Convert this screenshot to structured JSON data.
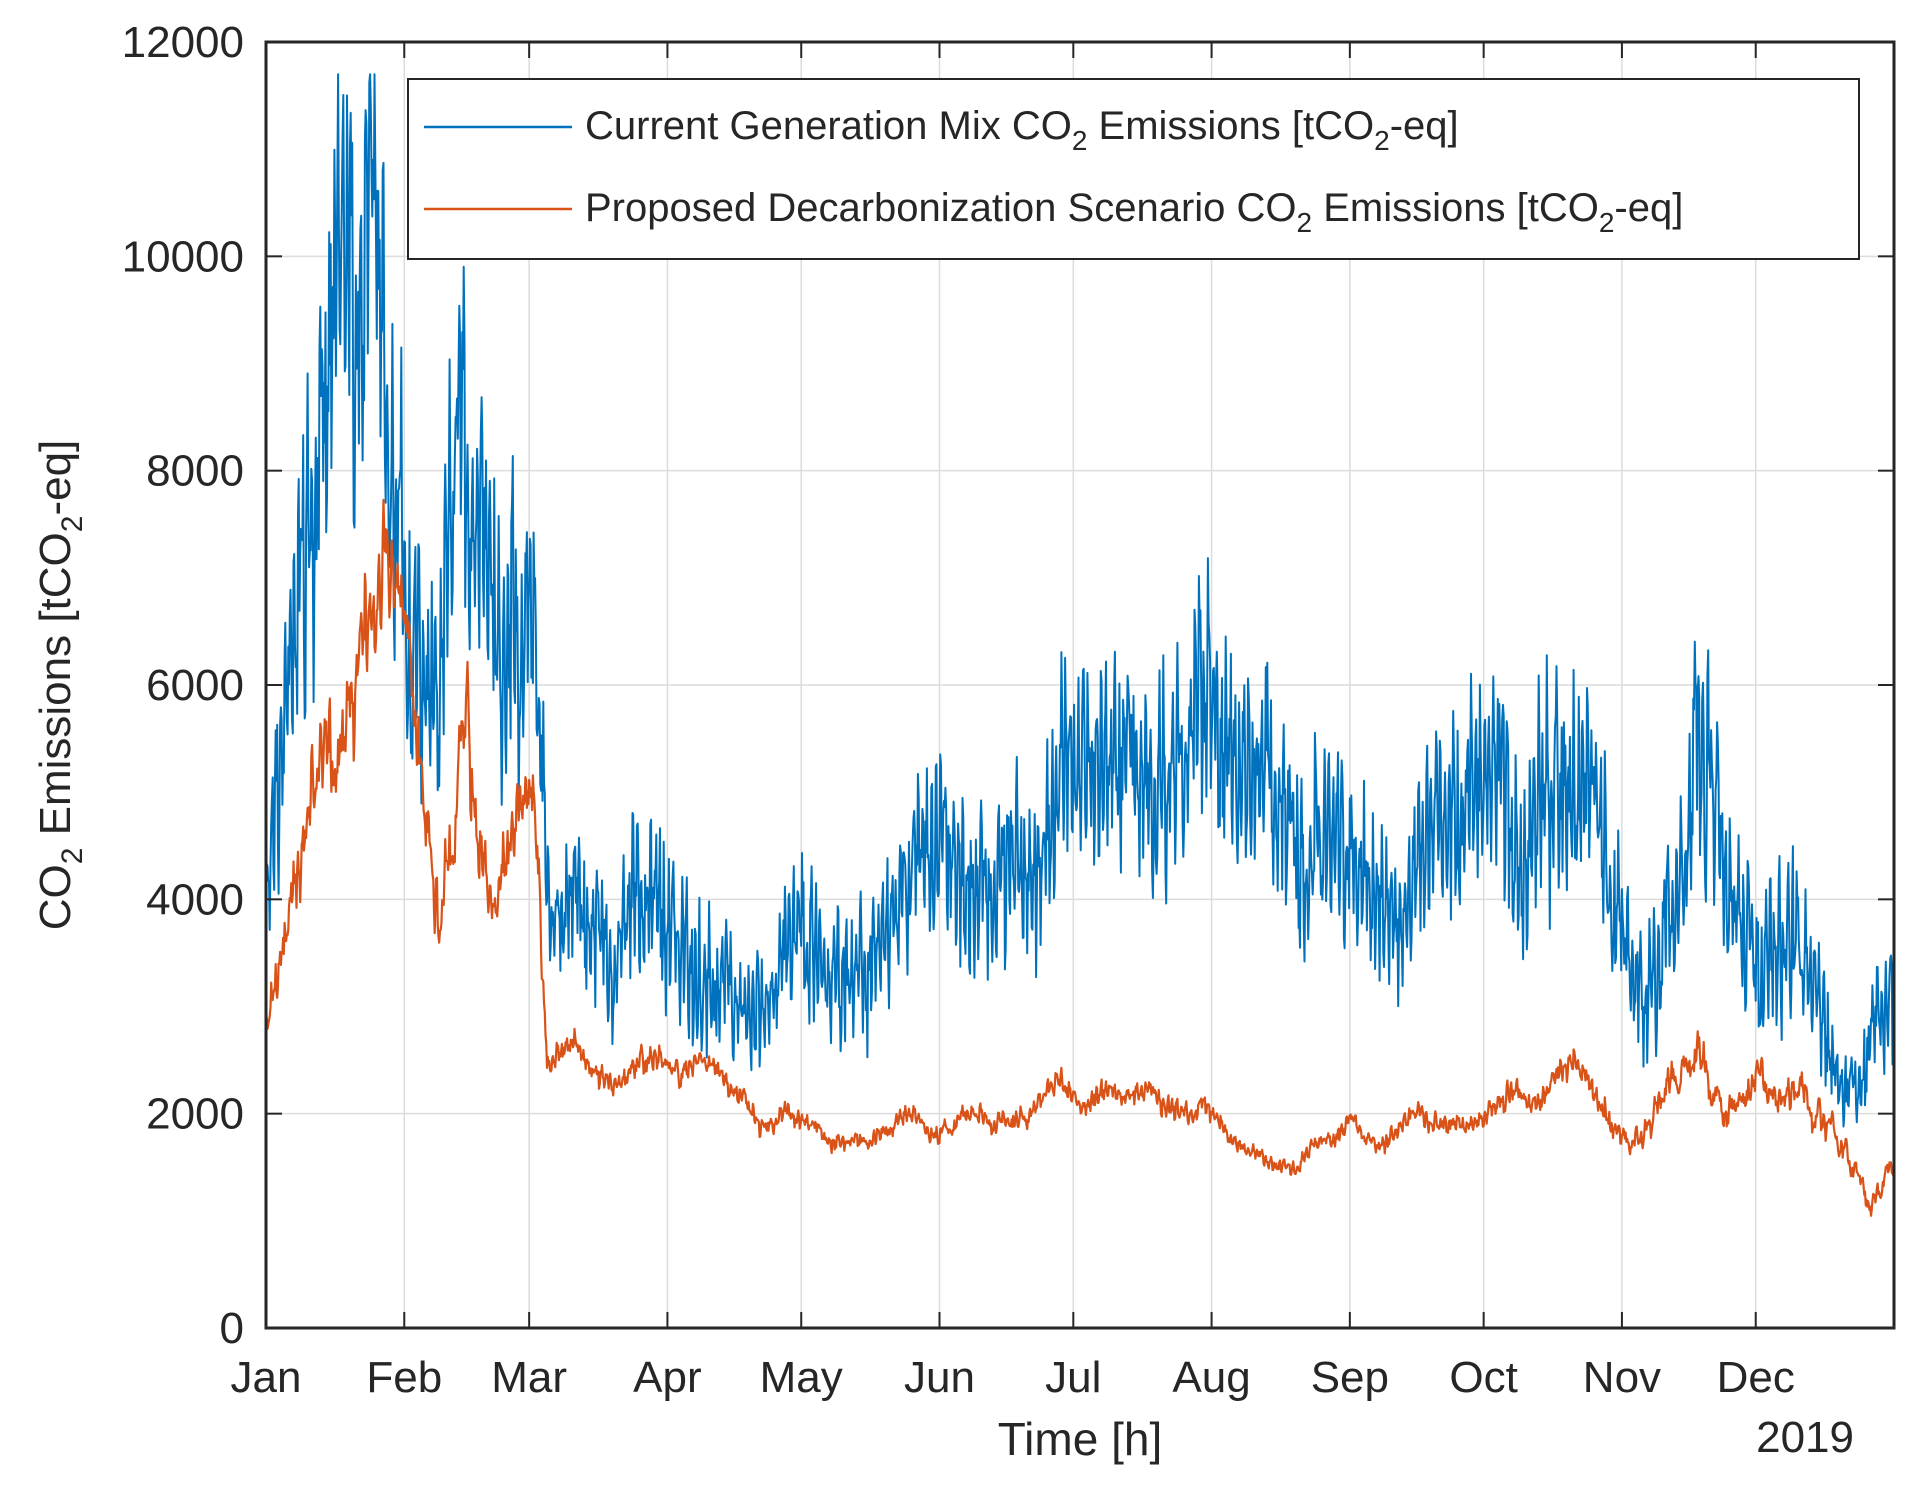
{
  "chart_data": {
    "type": "line",
    "xlabel": "Time [h]",
    "ylabel_parts": [
      "CO",
      "2",
      " Emissions [tCO",
      "2",
      "-eq]"
    ],
    "year_label": "2019",
    "months": [
      "Jan",
      "Feb",
      "Mar",
      "Apr",
      "May",
      "Jun",
      "Jul",
      "Aug",
      "Sep",
      "Oct",
      "Nov",
      "Dec"
    ],
    "x_range_days": [
      0,
      365
    ],
    "ylim": [
      0,
      12000
    ],
    "yticks": [
      0,
      2000,
      4000,
      6000,
      8000,
      10000,
      12000
    ],
    "grid": true,
    "legend_position": "top-right",
    "colors": {
      "current": "#0072BD",
      "proposed": "#D95319",
      "axis": "#262626",
      "grid": "#dcdcdc"
    },
    "series": [
      {
        "key": "current",
        "name_parts": [
          "Current Generation Mix CO",
          "2",
          " Emissions [tCO",
          "2",
          "-eq]"
        ],
        "envelope_points": [
          [
            0,
            3800
          ],
          [
            3,
            4900
          ],
          [
            6,
            6000
          ],
          [
            9,
            6800
          ],
          [
            12,
            7500
          ],
          [
            15,
            8300
          ],
          [
            18,
            9200
          ],
          [
            21,
            8800
          ],
          [
            24,
            9000
          ],
          [
            27,
            8500
          ],
          [
            30,
            8000
          ],
          [
            33,
            6500
          ],
          [
            36,
            5800
          ],
          [
            39,
            6300
          ],
          [
            42,
            7800
          ],
          [
            45,
            8600
          ],
          [
            48,
            7600
          ],
          [
            51,
            6800
          ],
          [
            54,
            6600
          ],
          [
            57,
            6500
          ],
          [
            60,
            6200
          ],
          [
            63,
            3600
          ],
          [
            66,
            3400
          ],
          [
            69,
            3800
          ],
          [
            72,
            3500
          ],
          [
            75,
            3300
          ],
          [
            78,
            3200
          ],
          [
            81,
            3600
          ],
          [
            84,
            3900
          ],
          [
            87,
            4300
          ],
          [
            90,
            4100
          ],
          [
            93,
            3700
          ],
          [
            96,
            3500
          ],
          [
            99,
            3500
          ],
          [
            102,
            3200
          ],
          [
            105,
            3100
          ],
          [
            108,
            3000
          ],
          [
            111,
            2800
          ],
          [
            114,
            3200
          ],
          [
            117,
            3400
          ],
          [
            120,
            3600
          ],
          [
            123,
            3700
          ],
          [
            126,
            3300
          ],
          [
            129,
            3200
          ],
          [
            132,
            3400
          ],
          [
            135,
            3700
          ],
          [
            138,
            3900
          ],
          [
            141,
            4000
          ],
          [
            144,
            4200
          ],
          [
            147,
            4400
          ],
          [
            150,
            4300
          ],
          [
            153,
            4000
          ],
          [
            156,
            4200
          ],
          [
            159,
            4200
          ],
          [
            162,
            4400
          ],
          [
            165,
            4700
          ],
          [
            168,
            4600
          ],
          [
            171,
            4500
          ],
          [
            174,
            4700
          ],
          [
            177,
            5100
          ],
          [
            180,
            5200
          ],
          [
            183,
            5300
          ],
          [
            186,
            5000
          ],
          [
            189,
            5200
          ],
          [
            192,
            5400
          ],
          [
            195,
            5300
          ],
          [
            198,
            5100
          ],
          [
            201,
            4900
          ],
          [
            204,
            5000
          ],
          [
            207,
            5300
          ],
          [
            210,
            5600
          ],
          [
            213,
            5500
          ],
          [
            216,
            5000
          ],
          [
            219,
            4800
          ],
          [
            222,
            4700
          ],
          [
            225,
            4900
          ],
          [
            228,
            4600
          ],
          [
            231,
            4300
          ],
          [
            234,
            4200
          ],
          [
            237,
            4500
          ],
          [
            240,
            4900
          ],
          [
            243,
            4800
          ],
          [
            246,
            4300
          ],
          [
            249,
            3800
          ],
          [
            252,
            3500
          ],
          [
            255,
            3700
          ],
          [
            258,
            4300
          ],
          [
            261,
            4800
          ],
          [
            264,
            4800
          ],
          [
            267,
            4600
          ],
          [
            270,
            4700
          ],
          [
            273,
            5000
          ],
          [
            276,
            5300
          ],
          [
            279,
            4900
          ],
          [
            282,
            4700
          ],
          [
            285,
            5100
          ],
          [
            288,
            5200
          ],
          [
            291,
            4900
          ],
          [
            294,
            5000
          ],
          [
            297,
            4800
          ],
          [
            300,
            4300
          ],
          [
            303,
            3700
          ],
          [
            306,
            3200
          ],
          [
            309,
            3300
          ],
          [
            312,
            3600
          ],
          [
            315,
            3800
          ],
          [
            318,
            4500
          ],
          [
            321,
            5700
          ],
          [
            324,
            5200
          ],
          [
            327,
            4300
          ],
          [
            330,
            3900
          ],
          [
            333,
            3700
          ],
          [
            336,
            3500
          ],
          [
            339,
            3700
          ],
          [
            342,
            3600
          ],
          [
            345,
            3400
          ],
          [
            348,
            3200
          ],
          [
            351,
            2500
          ],
          [
            354,
            2200
          ],
          [
            357,
            2000
          ],
          [
            360,
            2600
          ],
          [
            363,
            2900
          ],
          [
            365,
            3000
          ]
        ]
      },
      {
        "key": "proposed",
        "name_parts": [
          "Proposed Decarbonization Scenario CO",
          "2",
          " Emissions [tCO",
          "2",
          "-eq]"
        ],
        "envelope_points": [
          [
            0,
            2900
          ],
          [
            3,
            3700
          ],
          [
            6,
            4200
          ],
          [
            9,
            4800
          ],
          [
            12,
            5300
          ],
          [
            15,
            5600
          ],
          [
            18,
            5800
          ],
          [
            21,
            6300
          ],
          [
            24,
            6600
          ],
          [
            27,
            6700
          ],
          [
            30,
            6500
          ],
          [
            33,
            5600
          ],
          [
            36,
            4600
          ],
          [
            39,
            3700
          ],
          [
            42,
            4600
          ],
          [
            45,
            5700
          ],
          [
            48,
            4900
          ],
          [
            51,
            4100
          ],
          [
            54,
            4300
          ],
          [
            57,
            5000
          ],
          [
            60,
            5300
          ],
          [
            63,
            2400
          ],
          [
            66,
            2500
          ],
          [
            69,
            2600
          ],
          [
            72,
            2400
          ],
          [
            75,
            2300
          ],
          [
            78,
            2200
          ],
          [
            81,
            2300
          ],
          [
            84,
            2500
          ],
          [
            87,
            2600
          ],
          [
            90,
            2400
          ],
          [
            93,
            2400
          ],
          [
            96,
            2500
          ],
          [
            99,
            2400
          ],
          [
            102,
            2300
          ],
          [
            105,
            2200
          ],
          [
            108,
            2100
          ],
          [
            111,
            1900
          ],
          [
            114,
            1900
          ],
          [
            117,
            1950
          ],
          [
            120,
            1900
          ],
          [
            123,
            1850
          ],
          [
            126,
            1700
          ],
          [
            129,
            1700
          ],
          [
            132,
            1750
          ],
          [
            135,
            1750
          ],
          [
            138,
            1850
          ],
          [
            141,
            1900
          ],
          [
            144,
            2000
          ],
          [
            147,
            1900
          ],
          [
            150,
            1850
          ],
          [
            153,
            1900
          ],
          [
            156,
            2000
          ],
          [
            159,
            1950
          ],
          [
            162,
            1900
          ],
          [
            165,
            1900
          ],
          [
            168,
            1950
          ],
          [
            171,
            1950
          ],
          [
            174,
            2100
          ],
          [
            177,
            2300
          ],
          [
            180,
            2200
          ],
          [
            183,
            2000
          ],
          [
            186,
            2050
          ],
          [
            189,
            2150
          ],
          [
            192,
            2100
          ],
          [
            195,
            2200
          ],
          [
            198,
            2200
          ],
          [
            201,
            2100
          ],
          [
            204,
            2000
          ],
          [
            207,
            1950
          ],
          [
            210,
            2000
          ],
          [
            213,
            1900
          ],
          [
            216,
            1700
          ],
          [
            219,
            1650
          ],
          [
            222,
            1600
          ],
          [
            225,
            1500
          ],
          [
            228,
            1500
          ],
          [
            231,
            1450
          ],
          [
            234,
            1650
          ],
          [
            237,
            1750
          ],
          [
            240,
            1750
          ],
          [
            243,
            1900
          ],
          [
            246,
            1700
          ],
          [
            249,
            1700
          ],
          [
            252,
            1800
          ],
          [
            255,
            1950
          ],
          [
            258,
            2050
          ],
          [
            261,
            2000
          ],
          [
            264,
            1950
          ],
          [
            267,
            1950
          ],
          [
            270,
            1950
          ],
          [
            273,
            2000
          ],
          [
            276,
            2100
          ],
          [
            279,
            2300
          ],
          [
            282,
            2200
          ],
          [
            285,
            2100
          ],
          [
            288,
            2300
          ],
          [
            291,
            2500
          ],
          [
            294,
            2500
          ],
          [
            297,
            2300
          ],
          [
            300,
            2000
          ],
          [
            303,
            1900
          ],
          [
            306,
            1700
          ],
          [
            309,
            1900
          ],
          [
            312,
            2200
          ],
          [
            315,
            2200
          ],
          [
            318,
            2400
          ],
          [
            321,
            2600
          ],
          [
            324,
            2200
          ],
          [
            327,
            1900
          ],
          [
            330,
            1900
          ],
          [
            333,
            2100
          ],
          [
            336,
            2100
          ],
          [
            339,
            2000
          ],
          [
            342,
            2000
          ],
          [
            345,
            2100
          ],
          [
            348,
            1900
          ],
          [
            351,
            1700
          ],
          [
            354,
            1600
          ],
          [
            357,
            1450
          ],
          [
            360,
            1200
          ],
          [
            363,
            1500
          ],
          [
            365,
            1550
          ]
        ]
      }
    ]
  }
}
